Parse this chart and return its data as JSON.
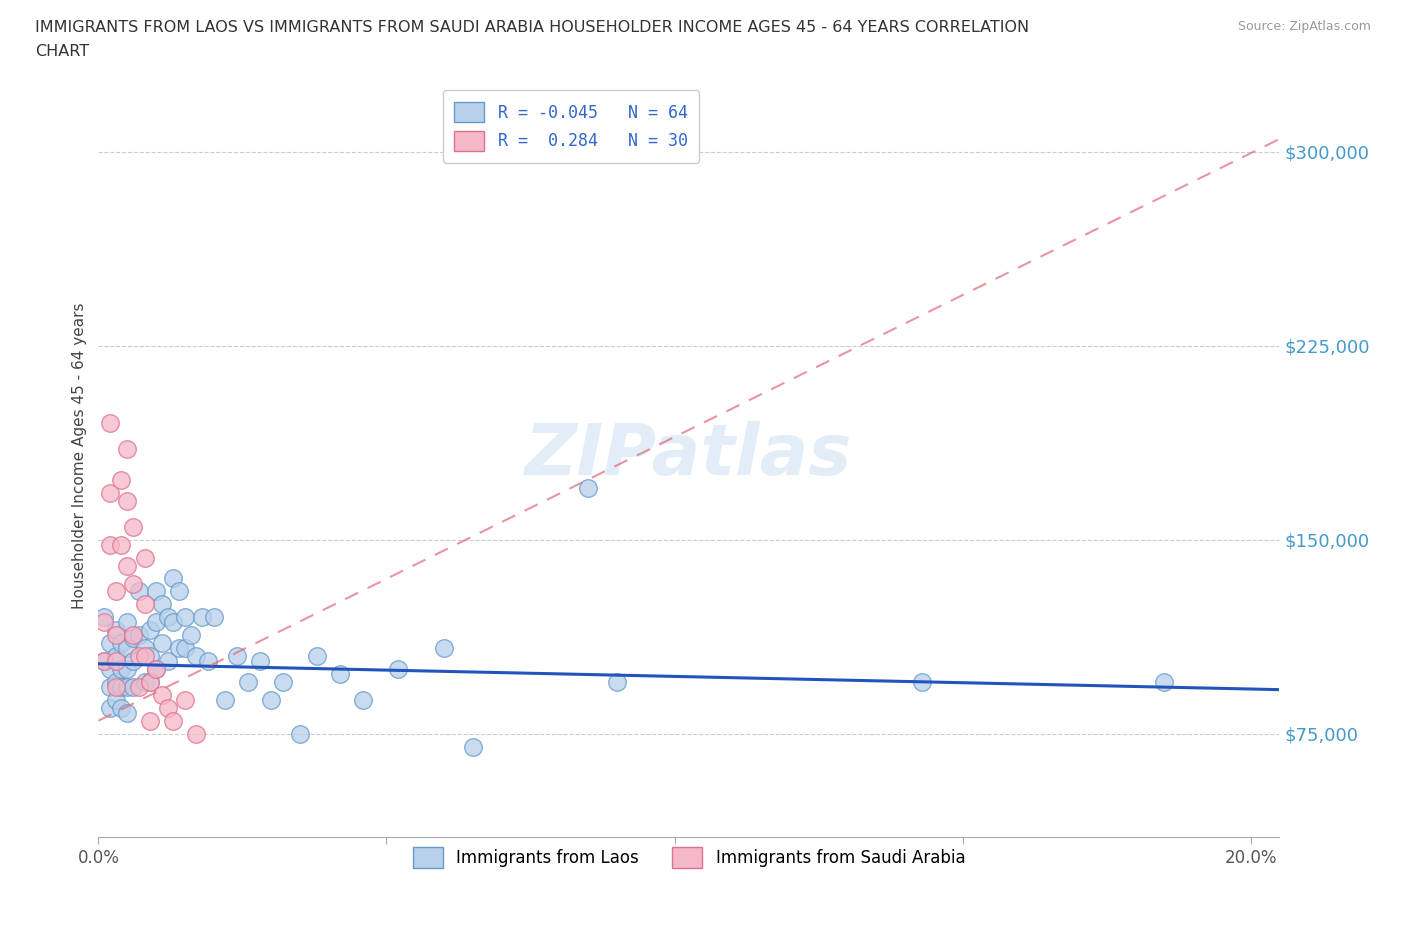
{
  "title_line1": "IMMIGRANTS FROM LAOS VS IMMIGRANTS FROM SAUDI ARABIA HOUSEHOLDER INCOME AGES 45 - 64 YEARS CORRELATION",
  "title_line2": "CHART",
  "source_text": "Source: ZipAtlas.com",
  "ylabel": "Householder Income Ages 45 - 64 years",
  "legend_label_1": "Immigrants from Laos",
  "legend_label_2": "Immigrants from Saudi Arabia",
  "legend_R1": "R = -0.045",
  "legend_N1": "N = 64",
  "legend_R2": "R =  0.284",
  "legend_N2": "N = 30",
  "color_laos_fill": "#b8d0ea",
  "color_laos_edge": "#6699cc",
  "color_laos_line": "#2255bb",
  "color_saudi_fill": "#f5b8c8",
  "color_saudi_edge": "#e07090",
  "color_saudi_line": "#e06878",
  "color_r_text": "#3366cc",
  "color_axis_right": "#4499cc",
  "color_title": "#333333",
  "color_source": "#999999",
  "background_color": "#ffffff",
  "watermark": "ZIPatlas",
  "xlim": [
    0.0,
    0.205
  ],
  "ylim": [
    35000,
    330000
  ],
  "yticks": [
    75000,
    150000,
    225000,
    300000
  ],
  "ytick_labels": [
    "$75,000",
    "$150,000",
    "$225,000",
    "$300,000"
  ],
  "xtick_positions": [
    0.0,
    0.05,
    0.1,
    0.15,
    0.2
  ],
  "xtick_labels": [
    "0.0%",
    "",
    "",
    "",
    "20.0%"
  ],
  "laos_x": [
    0.001,
    0.001,
    0.002,
    0.002,
    0.002,
    0.002,
    0.003,
    0.003,
    0.003,
    0.003,
    0.004,
    0.004,
    0.004,
    0.004,
    0.005,
    0.005,
    0.005,
    0.005,
    0.005,
    0.006,
    0.006,
    0.006,
    0.007,
    0.007,
    0.008,
    0.008,
    0.009,
    0.009,
    0.009,
    0.01,
    0.01,
    0.01,
    0.011,
    0.011,
    0.012,
    0.012,
    0.013,
    0.013,
    0.014,
    0.014,
    0.015,
    0.015,
    0.016,
    0.017,
    0.018,
    0.019,
    0.02,
    0.022,
    0.024,
    0.026,
    0.028,
    0.03,
    0.032,
    0.035,
    0.038,
    0.042,
    0.046,
    0.052,
    0.06,
    0.065,
    0.085,
    0.09,
    0.143,
    0.185
  ],
  "laos_y": [
    120000,
    103000,
    110000,
    100000,
    93000,
    85000,
    115000,
    105000,
    95000,
    88000,
    110000,
    100000,
    93000,
    85000,
    118000,
    108000,
    100000,
    93000,
    83000,
    112000,
    103000,
    93000,
    130000,
    113000,
    108000,
    95000,
    115000,
    105000,
    95000,
    130000,
    118000,
    100000,
    125000,
    110000,
    120000,
    103000,
    135000,
    118000,
    130000,
    108000,
    120000,
    108000,
    113000,
    105000,
    120000,
    103000,
    120000,
    88000,
    105000,
    95000,
    103000,
    88000,
    95000,
    75000,
    105000,
    98000,
    88000,
    100000,
    108000,
    70000,
    170000,
    95000,
    95000,
    95000
  ],
  "saudi_x": [
    0.001,
    0.001,
    0.002,
    0.002,
    0.002,
    0.003,
    0.003,
    0.003,
    0.003,
    0.004,
    0.004,
    0.005,
    0.005,
    0.005,
    0.006,
    0.006,
    0.006,
    0.007,
    0.007,
    0.008,
    0.008,
    0.008,
    0.009,
    0.009,
    0.01,
    0.011,
    0.012,
    0.013,
    0.015,
    0.017
  ],
  "saudi_y": [
    118000,
    103000,
    195000,
    168000,
    148000,
    130000,
    113000,
    103000,
    93000,
    173000,
    148000,
    185000,
    165000,
    140000,
    155000,
    133000,
    113000,
    105000,
    93000,
    143000,
    125000,
    105000,
    95000,
    80000,
    100000,
    90000,
    85000,
    80000,
    88000,
    75000
  ],
  "laos_line_x": [
    0.0,
    0.205
  ],
  "laos_line_y": [
    102000,
    92000
  ],
  "saudi_line_x": [
    0.0,
    0.205
  ],
  "saudi_line_y": [
    80000,
    305000
  ]
}
